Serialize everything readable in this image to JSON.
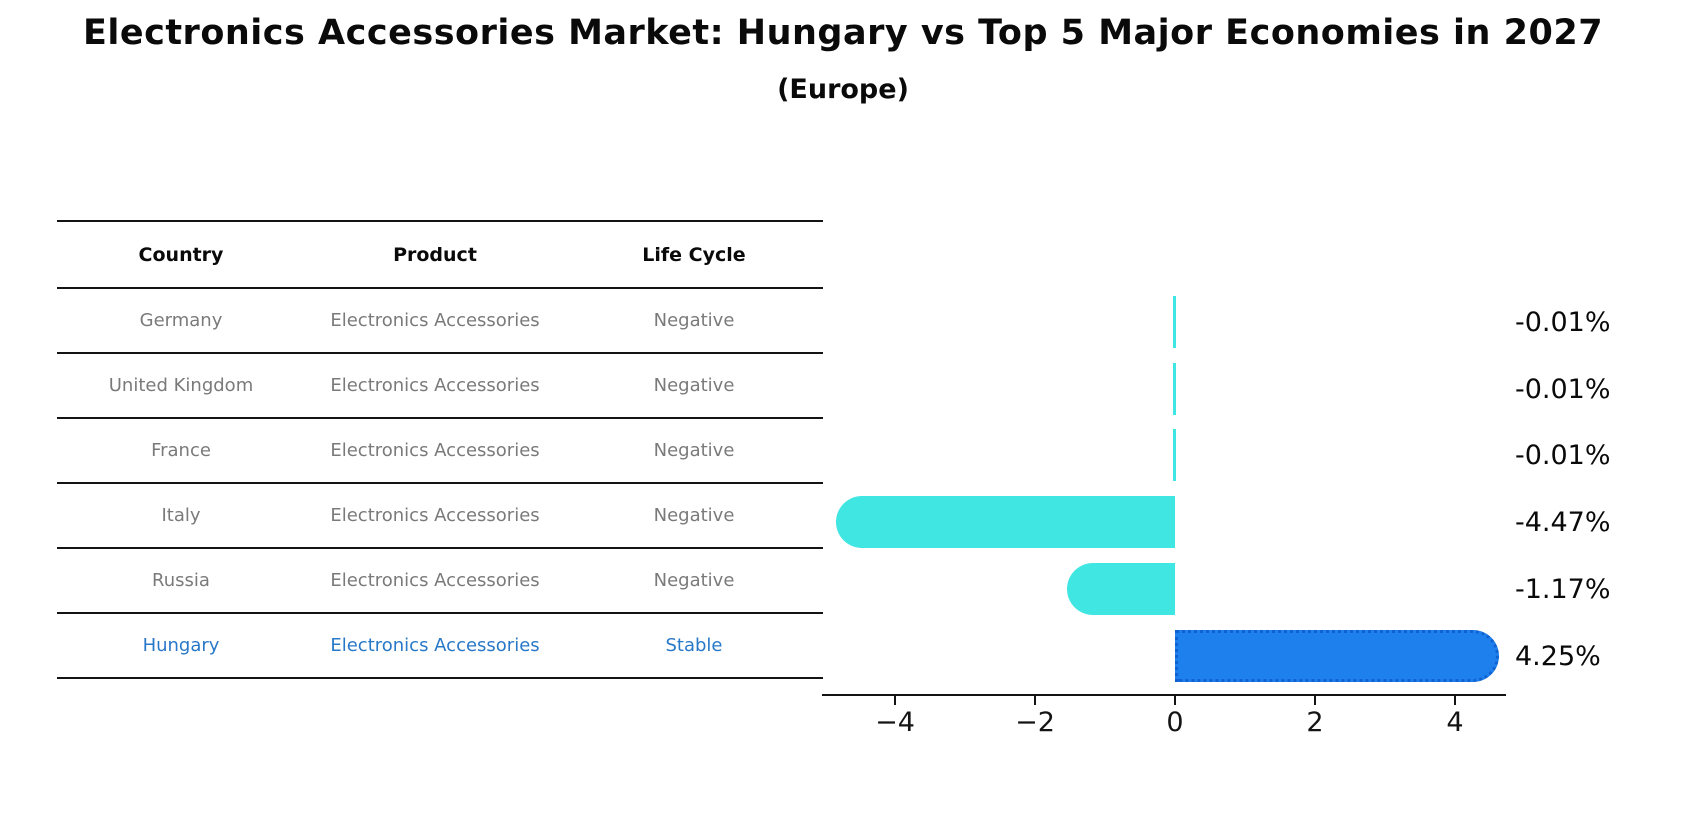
{
  "page": {
    "title": "Electronics Accessories Market: Hungary vs Top 5 Major Economies in 2027",
    "subtitle": "(Europe)"
  },
  "table": {
    "headers": [
      "Country",
      "Product",
      "Life Cycle"
    ],
    "rows": [
      {
        "country": "Germany",
        "product": "Electronics Accessories",
        "life_cycle": "Negative",
        "highlight": false
      },
      {
        "country": "United Kingdom",
        "product": "Electronics Accessories",
        "life_cycle": "Negative",
        "highlight": false
      },
      {
        "country": "France",
        "product": "Electronics Accessories",
        "life_cycle": "Negative",
        "highlight": false
      },
      {
        "country": "Italy",
        "product": "Electronics Accessories",
        "life_cycle": "Negative",
        "highlight": false
      },
      {
        "country": "Russia",
        "product": "Electronics Accessories",
        "life_cycle": "Negative",
        "highlight": false
      },
      {
        "country": "Hungary",
        "product": "Electronics Accessories",
        "life_cycle": "Stable",
        "highlight": true
      }
    ]
  },
  "chart_data": {
    "type": "bar",
    "orientation": "horizontal",
    "title": "Electronics Accessories Market: Hungary vs Top 5 Major Economies in 2027",
    "subtitle": "(Europe)",
    "categories": [
      "Germany",
      "United Kingdom",
      "France",
      "Italy",
      "Russia",
      "Hungary"
    ],
    "values": [
      -0.01,
      -0.01,
      -0.01,
      -4.47,
      -1.17,
      4.25
    ],
    "value_labels": [
      "-0.01%",
      "-0.01%",
      "-0.01%",
      "-4.47%",
      "-1.17%",
      "4.25%"
    ],
    "unit": "%",
    "xticks": [
      -4,
      -2,
      0,
      2,
      4
    ],
    "xtick_labels": [
      "−4",
      "−2",
      "0",
      "2",
      "4"
    ],
    "xlim": [
      -5.05,
      4.72
    ],
    "grid": false,
    "legend": false,
    "colors": {
      "bar_negative": "#40e6e2",
      "bar_highlight": "#1e80ec",
      "highlight_border": "#0f62d0",
      "highlight_text": "#2878c8",
      "row_text": "#7a7a7a",
      "axis": "#141414",
      "value_label_text": "#0a0a0a"
    }
  }
}
